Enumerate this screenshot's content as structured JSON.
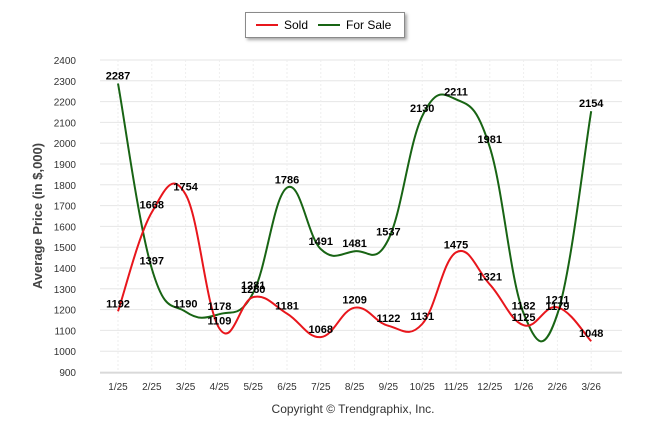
{
  "chart_data": {
    "type": "line",
    "categories": [
      "1/25",
      "2/25",
      "3/25",
      "4/25",
      "5/25",
      "6/25",
      "7/25",
      "8/25",
      "9/25",
      "10/25",
      "11/25",
      "12/25",
      "1/26",
      "2/26",
      "3/26"
    ],
    "series": [
      {
        "name": "Sold",
        "color": "#e8161c",
        "values": [
          1192,
          1668,
          1754,
          1109,
          1260,
          1181,
          1068,
          1209,
          1122,
          1131,
          1475,
          1321,
          1125,
          1211,
          1048
        ],
        "labels": [
          "1192",
          "1668",
          "1754",
          "1109",
          "1260",
          "1181",
          "1068",
          "1209",
          "1122",
          "1131",
          "1475",
          "1321",
          "1125",
          "1211",
          "1048"
        ]
      },
      {
        "name": "For Sale",
        "color": "#186414",
        "values": [
          2287,
          1397,
          1190,
          1178,
          1281,
          1786,
          1491,
          1481,
          1537,
          2130,
          2211,
          1981,
          1182,
          1179,
          2154
        ],
        "labels": [
          "2287",
          "1397",
          "1190",
          "1178",
          "1281",
          "1786",
          "1491",
          "1481",
          "1537",
          "2130",
          "2211",
          "1981",
          "1182",
          "1179",
          "2154"
        ]
      }
    ],
    "ylabel": "Average Price (in $,000)",
    "xlabel": "",
    "ylim": [
      900,
      2400
    ],
    "yticks": [
      900,
      1000,
      1100,
      1200,
      1300,
      1400,
      1500,
      1600,
      1700,
      1800,
      1900,
      2000,
      2100,
      2200,
      2300,
      2400
    ],
    "grid": true,
    "legend": "top-center"
  },
  "legend": {
    "sold_label": "Sold",
    "for_sale_label": "For Sale"
  },
  "footer": {
    "copyright": "Copyright © Trendgraphix, Inc."
  }
}
